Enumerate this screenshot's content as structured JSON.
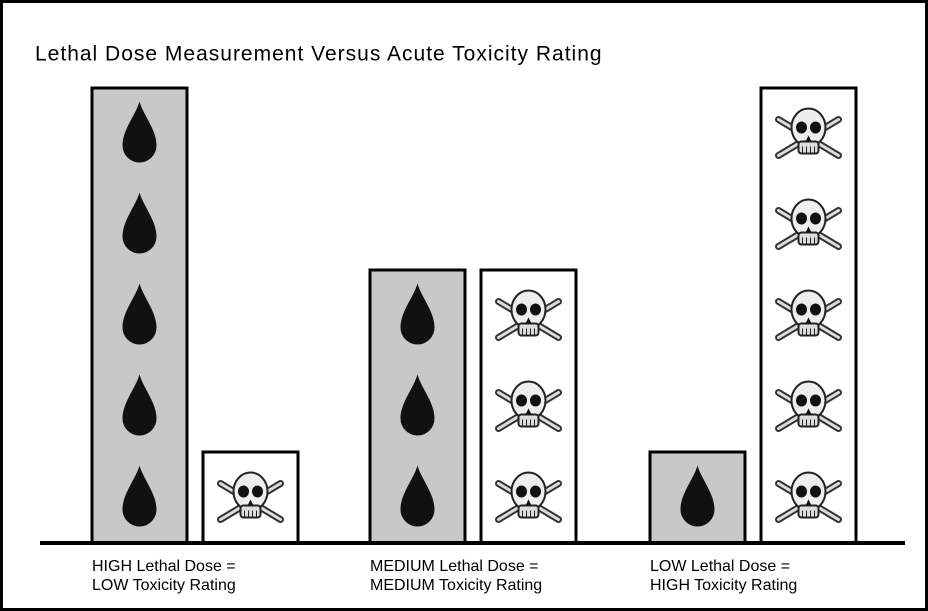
{
  "chart_data": {
    "type": "bar",
    "title": "Lethal Dose Measurement Versus Acute Toxicity Rating",
    "categories": [
      [
        "HIGH Lethal Dose =",
        "LOW Toxicity Rating"
      ],
      [
        "MEDIUM Lethal Dose =",
        "MEDIUM Toxicity Rating"
      ],
      [
        "LOW Lethal Dose =",
        "HIGH Toxicity Rating"
      ]
    ],
    "series": [
      {
        "color": "#c8c8c8",
        "icon": "drop",
        "values": [
          5,
          3,
          1
        ]
      },
      {
        "color": "#ffffff",
        "icon": "skull",
        "values": [
          1,
          3,
          5
        ]
      }
    ],
    "ylim": [
      0,
      5
    ]
  }
}
